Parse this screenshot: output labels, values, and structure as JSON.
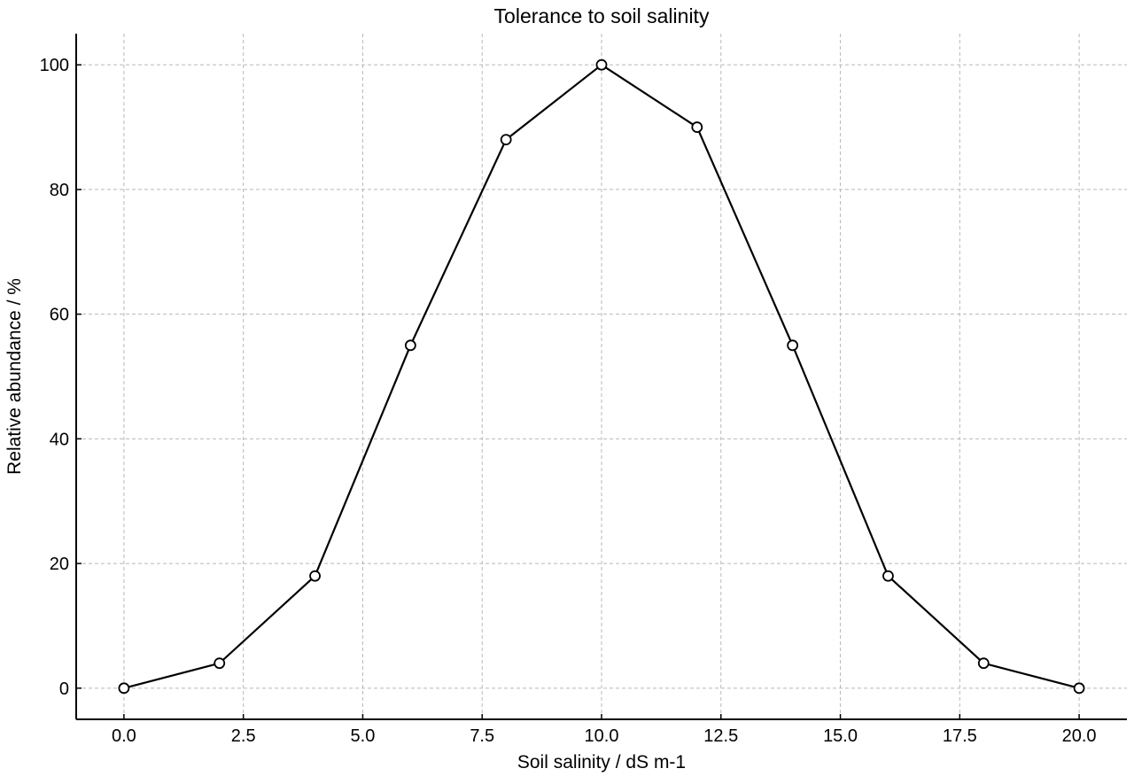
{
  "chart_data": {
    "type": "line",
    "title": "Tolerance to soil salinity",
    "xlabel": "Soil salinity / dS m-1",
    "ylabel": "Relative abundance / %",
    "xlim": [
      -1,
      21
    ],
    "ylim": [
      -5,
      105
    ],
    "xticks": [
      0.0,
      2.5,
      5.0,
      7.5,
      10.0,
      12.5,
      15.0,
      17.5,
      20.0
    ],
    "xtick_labels": [
      "0.0",
      "2.5",
      "5.0",
      "7.5",
      "10.0",
      "12.5",
      "15.0",
      "17.5",
      "20.0"
    ],
    "yticks": [
      0,
      20,
      40,
      60,
      80,
      100
    ],
    "ytick_labels": [
      "0",
      "20",
      "40",
      "60",
      "80",
      "100"
    ],
    "grid": true,
    "series": [
      {
        "x": [
          0,
          2,
          4,
          6,
          8,
          10,
          12,
          14,
          16,
          18,
          20
        ],
        "values": [
          0,
          4,
          18,
          55,
          88,
          100,
          90,
          55,
          18,
          4,
          0
        ],
        "color": "#000000",
        "marker": "open-circle"
      }
    ]
  }
}
